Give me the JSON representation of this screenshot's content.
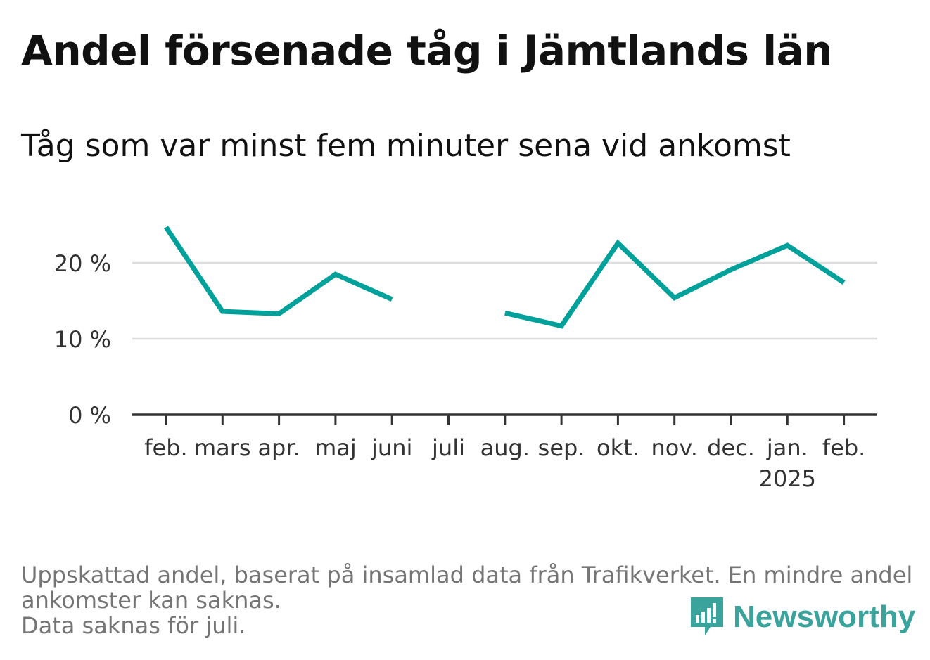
{
  "header": {
    "title": "Andel försenade tåg i Jämtlands län",
    "subtitle": "Tåg som var minst fem minuter sena vid ankomst"
  },
  "chart_data": {
    "type": "line",
    "title": "Andel försenade tåg i Jämtlands län",
    "subtitle": "Tåg som var minst fem minuter sena vid ankomst",
    "xlabel": "",
    "ylabel": "",
    "categories": [
      "feb.",
      "mars",
      "apr.",
      "maj",
      "juni",
      "juli",
      "aug.",
      "sep.",
      "okt.",
      "nov.",
      "dec.",
      "jan.",
      "feb."
    ],
    "year_label": "2025",
    "series": [
      {
        "values": [
          24.7,
          13.6,
          13.3,
          18.5,
          15.2,
          null,
          13.4,
          11.7,
          22.6,
          15.4,
          19.1,
          22.3,
          17.4
        ]
      }
    ],
    "y_ticks": [
      "0 %",
      "10 %",
      "20 %"
    ],
    "ylim": [
      0,
      26
    ],
    "grid": true,
    "legend": "none",
    "line_color": "#00a09b"
  },
  "footer": {
    "note_line1": "Uppskattad andel, baserat på insamlad data från Trafikverket. En mindre andel",
    "note_line2": "ankomster kan saknas.",
    "note_line3": "Data saknas för juli.",
    "brand": "Newsworthy"
  },
  "icons": {
    "brand_logo": "newsworthy-logo-icon"
  },
  "colors": {
    "brand": "#3aa39c",
    "line": "#00a09b",
    "grid": "#dddddd",
    "axis": "#333333"
  }
}
